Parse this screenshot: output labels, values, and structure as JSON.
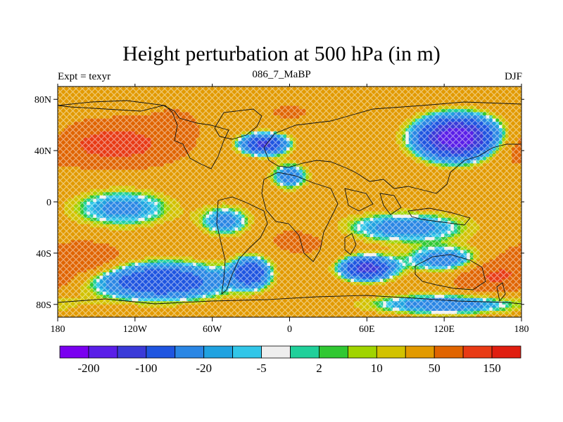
{
  "title": "Height perturbation at 500 hPa (in m)",
  "subtitle_left": "Expt = texyr",
  "subtitle_center": "086_7_MaBP",
  "subtitle_right": "DJF",
  "map": {
    "projection": "cylindrical-equidistant",
    "lon_range": [
      -180,
      180
    ],
    "lat_range": [
      -90,
      90
    ],
    "lon_ticks": [
      {
        "value": -180,
        "label": "180"
      },
      {
        "value": -120,
        "label": "120W"
      },
      {
        "value": -60,
        "label": "60W"
      },
      {
        "value": 0,
        "label": "0"
      },
      {
        "value": 60,
        "label": "60E"
      },
      {
        "value": 120,
        "label": "120E"
      },
      {
        "value": 180,
        "label": "180"
      }
    ],
    "lat_ticks": [
      {
        "value": 80,
        "label": "80N"
      },
      {
        "value": 40,
        "label": "40N"
      },
      {
        "value": 0,
        "label": "0"
      },
      {
        "value": -40,
        "label": "40S"
      },
      {
        "value": -80,
        "label": "80S"
      }
    ],
    "background_value": 40,
    "anomalies": [
      {
        "lon": -135,
        "lat": 45,
        "value": 140,
        "lon_radius": 38,
        "lat_radius": 14
      },
      {
        "lon": -90,
        "lat": 60,
        "value": 60,
        "lon_radius": 20,
        "lat_radius": 14
      },
      {
        "lon": 0,
        "lat": 70,
        "value": 55,
        "lon_radius": 20,
        "lat_radius": 8
      },
      {
        "lon": -20,
        "lat": 45,
        "value": -120,
        "lon_radius": 18,
        "lat_radius": 8
      },
      {
        "lon": 130,
        "lat": 50,
        "value": -200,
        "lon_radius": 30,
        "lat_radius": 16
      },
      {
        "lon": 165,
        "lat": 40,
        "value": 60,
        "lon_radius": 20,
        "lat_radius": 14
      },
      {
        "lon": 0,
        "lat": 20,
        "value": -40,
        "lon_radius": 14,
        "lat_radius": 10
      },
      {
        "lon": -130,
        "lat": -5,
        "value": -30,
        "lon_radius": 40,
        "lat_radius": 15
      },
      {
        "lon": -50,
        "lat": -15,
        "value": -30,
        "lon_radius": 20,
        "lat_radius": 12
      },
      {
        "lon": 90,
        "lat": -20,
        "value": -35,
        "lon_radius": 50,
        "lat_radius": 12
      },
      {
        "lon": -160,
        "lat": -45,
        "value": 90,
        "lon_radius": 30,
        "lat_radius": 12
      },
      {
        "lon": 10,
        "lat": -30,
        "value": 60,
        "lon_radius": 30,
        "lat_radius": 12
      },
      {
        "lon": -100,
        "lat": -62,
        "value": -100,
        "lon_radius": 50,
        "lat_radius": 14
      },
      {
        "lon": -30,
        "lat": -55,
        "value": -80,
        "lon_radius": 15,
        "lat_radius": 12
      },
      {
        "lon": 60,
        "lat": -52,
        "value": -130,
        "lon_radius": 20,
        "lat_radius": 9
      },
      {
        "lon": 120,
        "lat": -45,
        "value": -40,
        "lon_radius": 30,
        "lat_radius": 10
      },
      {
        "lon": 160,
        "lat": -58,
        "value": 110,
        "lon_radius": 28,
        "lat_radius": 12
      },
      {
        "lon": 120,
        "lat": -80,
        "value": -40,
        "lon_radius": 60,
        "lat_radius": 8
      }
    ]
  },
  "colorbar": {
    "colors": [
      "#7a00f0",
      "#5a1ee8",
      "#3a3ad8",
      "#1f55e0",
      "#2a86e4",
      "#20a2e0",
      "#32c6e8",
      "#eeeeee",
      "#20d09a",
      "#30c832",
      "#a0d400",
      "#d2c200",
      "#e29a00",
      "#e06400",
      "#e83a14",
      "#e01e10"
    ],
    "thresholds": [
      -200,
      -150,
      -100,
      -50,
      -20,
      -10,
      -5,
      -2,
      2,
      5,
      10,
      20,
      50,
      100,
      150
    ],
    "labels": [
      {
        "after_box": 1,
        "label": "-200"
      },
      {
        "after_box": 3,
        "label": "-100"
      },
      {
        "after_box": 5,
        "label": "-20"
      },
      {
        "after_box": 7,
        "label": "-5"
      },
      {
        "after_box": 9,
        "label": "2"
      },
      {
        "after_box": 11,
        "label": "10"
      },
      {
        "after_box": 13,
        "label": "50"
      },
      {
        "after_box": 15,
        "label": "150"
      }
    ]
  }
}
